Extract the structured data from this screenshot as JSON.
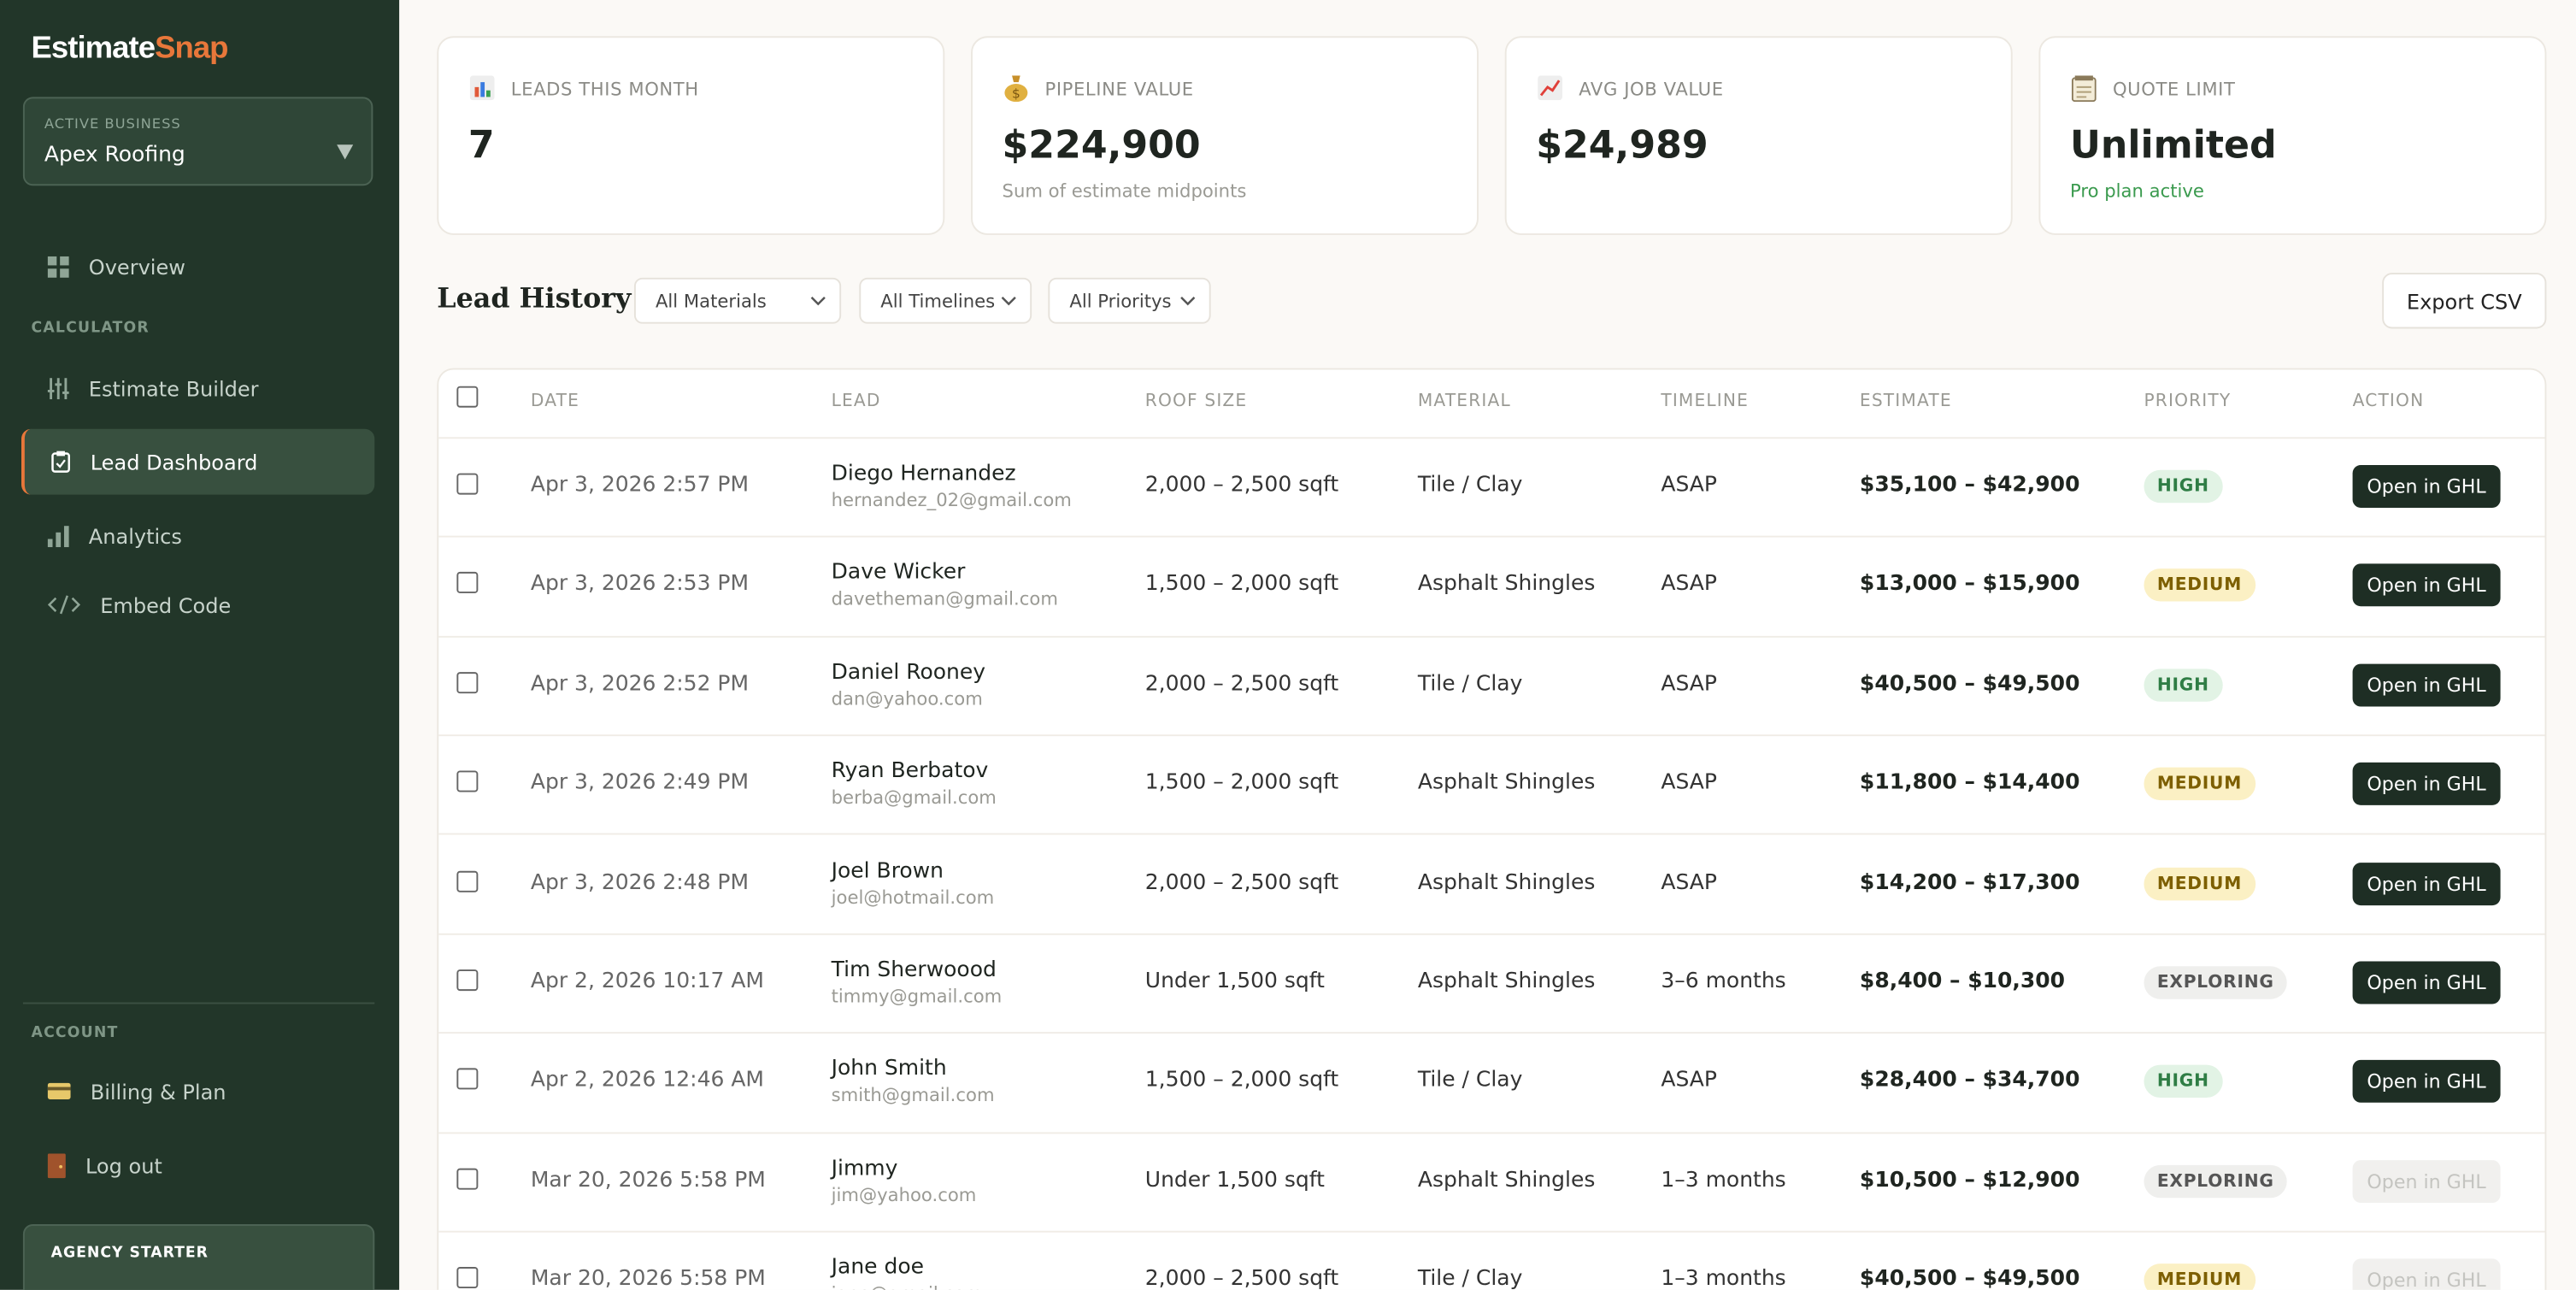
{
  "sidebar": {
    "logo_main": "Estimate",
    "logo_accent": "Snap",
    "business_label": "ACTIVE BUSINESS",
    "business_name": "Apex Roofing",
    "nav_overview": "Overview",
    "section_calculator": "CALCULATOR",
    "nav_estimate_builder": "Estimate Builder",
    "nav_lead_dashboard": "Lead Dashboard",
    "nav_analytics": "Analytics",
    "nav_embed_code": "Embed Code",
    "section_account": "ACCOUNT",
    "nav_billing": "Billing & Plan",
    "nav_logout": "Log out",
    "plan_badge": "AGENCY STARTER"
  },
  "stats": [
    {
      "label": "LEADS THIS MONTH",
      "value": "7"
    },
    {
      "label": "PIPELINE VALUE",
      "value": "$224,900",
      "note": "Sum of estimate midpoints"
    },
    {
      "label": "AVG JOB VALUE",
      "value": "$24,989"
    },
    {
      "label": "QUOTE LIMIT",
      "value": "Unlimited",
      "note": "Pro plan active"
    }
  ],
  "lead_history": {
    "title": "Lead History",
    "filters": [
      "All Materials",
      "All Timelines",
      "All Prioritys"
    ],
    "export": "Export CSV"
  },
  "table": {
    "headers": [
      "DATE",
      "LEAD",
      "ROOF SIZE",
      "MATERIAL",
      "TIMELINE",
      "ESTIMATE",
      "PRIORITY",
      "ACTION"
    ],
    "priority_colors": {
      "HIGH": {
        "bg": "#e2f3e5",
        "fg": "#2f7d45"
      },
      "MEDIUM": {
        "bg": "#fbf0c4",
        "fg": "#7d5f00"
      },
      "EXPLORING": {
        "bg": "#efefed",
        "fg": "#555"
      }
    },
    "rows": [
      {
        "date": "Apr 3, 2026 2:57 PM",
        "name": "Diego Hernandez",
        "email": "hernandez_02@gmail.com",
        "roof_size": "2,000 – 2,500 sqft",
        "material": "Tile / Clay",
        "timeline": "ASAP",
        "estimate": "$35,100 – $42,900",
        "priority": "HIGH",
        "action": "Open in GHL",
        "action_enabled": true
      },
      {
        "date": "Apr 3, 2026 2:53 PM",
        "name": "Dave Wicker",
        "email": "davetheman@gmail.com",
        "roof_size": "1,500 – 2,000 sqft",
        "material": "Asphalt Shingles",
        "timeline": "ASAP",
        "estimate": "$13,000 – $15,900",
        "priority": "MEDIUM",
        "action": "Open in GHL",
        "action_enabled": true
      },
      {
        "date": "Apr 3, 2026 2:52 PM",
        "name": "Daniel Rooney",
        "email": "dan@yahoo.com",
        "roof_size": "2,000 – 2,500 sqft",
        "material": "Tile / Clay",
        "timeline": "ASAP",
        "estimate": "$40,500 – $49,500",
        "priority": "HIGH",
        "action": "Open in GHL",
        "action_enabled": true
      },
      {
        "date": "Apr 3, 2026 2:49 PM",
        "name": "Ryan Berbatov",
        "email": "berba@gmail.com",
        "roof_size": "1,500 – 2,000 sqft",
        "material": "Asphalt Shingles",
        "timeline": "ASAP",
        "estimate": "$11,800 – $14,400",
        "priority": "MEDIUM",
        "action": "Open in GHL",
        "action_enabled": true
      },
      {
        "date": "Apr 3, 2026 2:48 PM",
        "name": "Joel Brown",
        "email": "joel@hotmail.com",
        "roof_size": "2,000 – 2,500 sqft",
        "material": "Asphalt Shingles",
        "timeline": "ASAP",
        "estimate": "$14,200 – $17,300",
        "priority": "MEDIUM",
        "action": "Open in GHL",
        "action_enabled": true
      },
      {
        "date": "Apr 2, 2026 10:17 AM",
        "name": "Tim Sherwoood",
        "email": "timmy@gmail.com",
        "roof_size": "Under 1,500 sqft",
        "material": "Asphalt Shingles",
        "timeline": "3–6 months",
        "estimate": "$8,400 – $10,300",
        "priority": "EXPLORING",
        "action": "Open in GHL",
        "action_enabled": true
      },
      {
        "date": "Apr 2, 2026 12:46 AM",
        "name": "John Smith",
        "email": "smith@gmail.com",
        "roof_size": "1,500 – 2,000 sqft",
        "material": "Tile / Clay",
        "timeline": "ASAP",
        "estimate": "$28,400 – $34,700",
        "priority": "HIGH",
        "action": "Open in GHL",
        "action_enabled": true
      },
      {
        "date": "Mar 20, 2026 5:58 PM",
        "name": "Jimmy",
        "email": "jim@yahoo.com",
        "roof_size": "Under 1,500 sqft",
        "material": "Asphalt Shingles",
        "timeline": "1–3 months",
        "estimate": "$10,500 – $12,900",
        "priority": "EXPLORING",
        "action": "Open in GHL",
        "action_enabled": false
      },
      {
        "date": "Mar 20, 2026 5:58 PM",
        "name": "Jane doe",
        "email": "jane@gmail.com",
        "roof_size": "2,000 – 2,500 sqft",
        "material": "Tile / Clay",
        "timeline": "1–3 months",
        "estimate": "$40,500 – $49,500",
        "priority": "MEDIUM",
        "action": "Open in GHL",
        "action_enabled": false
      }
    ]
  }
}
